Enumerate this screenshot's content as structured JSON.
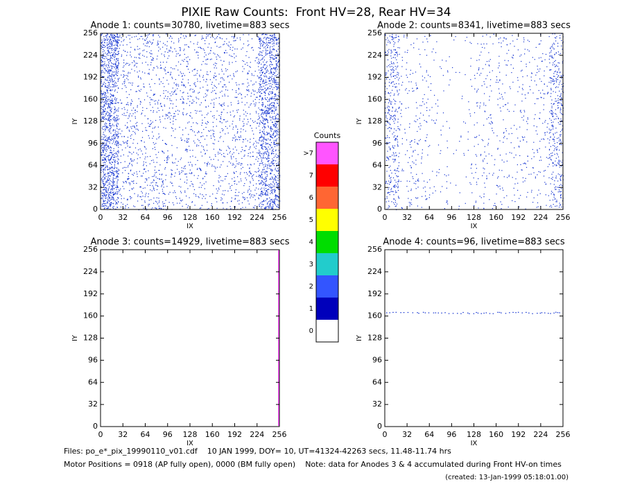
{
  "title": "PIXIE Raw Counts:  Front HV=28, Rear HV=34",
  "chart_data": [
    {
      "type": "heatmap",
      "title": "Anode 1: counts=30780, livetime=883 secs",
      "xlabel": "IX",
      "ylabel": "IY",
      "xlim": [
        0,
        256
      ],
      "ylim": [
        0,
        256
      ],
      "xticks": [
        0,
        32,
        64,
        96,
        128,
        160,
        192,
        224,
        256
      ],
      "yticks": [
        0,
        32,
        64,
        96,
        128,
        160,
        192,
        224,
        256
      ],
      "color": "#1030d0"
    },
    {
      "type": "heatmap",
      "title": "Anode 2: counts=8341, livetime=883 secs",
      "xlabel": "IX",
      "ylabel": "IY",
      "xlim": [
        0,
        256
      ],
      "ylim": [
        0,
        256
      ],
      "xticks": [
        0,
        32,
        64,
        96,
        128,
        160,
        192,
        224,
        256
      ],
      "yticks": [
        0,
        32,
        64,
        96,
        128,
        160,
        192,
        224,
        256
      ],
      "color": "#1030d0"
    },
    {
      "type": "heatmap",
      "title": "Anode 3: counts=14929, livetime=883 secs",
      "xlabel": "IX",
      "ylabel": "IY",
      "xlim": [
        0,
        256
      ],
      "ylim": [
        0,
        256
      ],
      "xticks": [
        0,
        32,
        64,
        96,
        128,
        160,
        192,
        224,
        256
      ],
      "yticks": [
        0,
        32,
        64,
        96,
        128,
        160,
        192,
        224,
        256
      ],
      "color": "#ff55ff"
    },
    {
      "type": "heatmap",
      "title": "Anode 4: counts=96, livetime=883 secs",
      "xlabel": "IX",
      "ylabel": "IY",
      "xlim": [
        0,
        256
      ],
      "ylim": [
        0,
        256
      ],
      "xticks": [
        0,
        32,
        64,
        96,
        128,
        160,
        192,
        224,
        256
      ],
      "yticks": [
        0,
        32,
        64,
        96,
        128,
        160,
        192,
        224,
        256
      ],
      "color": "#1030d0"
    }
  ],
  "colorbar": {
    "title": "Counts",
    "labels": [
      "0",
      "1",
      "2",
      "3",
      "4",
      "5",
      "6",
      "7",
      ">7"
    ],
    "colors": [
      "#ffffff",
      "#0000bb",
      "#3355ff",
      "#22cccc",
      "#00dd00",
      "#ffff00",
      "#ff6633",
      "#ff0000",
      "#ff55ff"
    ]
  },
  "footer": {
    "files": "Files: po_e*_pix_19990110_v01.cdf    10 JAN 1999, DOY= 10, UT=41324-42263 secs, 11.48-11.74 hrs",
    "motor": "Motor Positions = 0918 (AP fully open), 0000 (BM fully open)    Note: data for Anodes 3 & 4 accumulated during Front HV-on times",
    "created": "(created: 13-Jan-1999 05:18:01.00)"
  }
}
